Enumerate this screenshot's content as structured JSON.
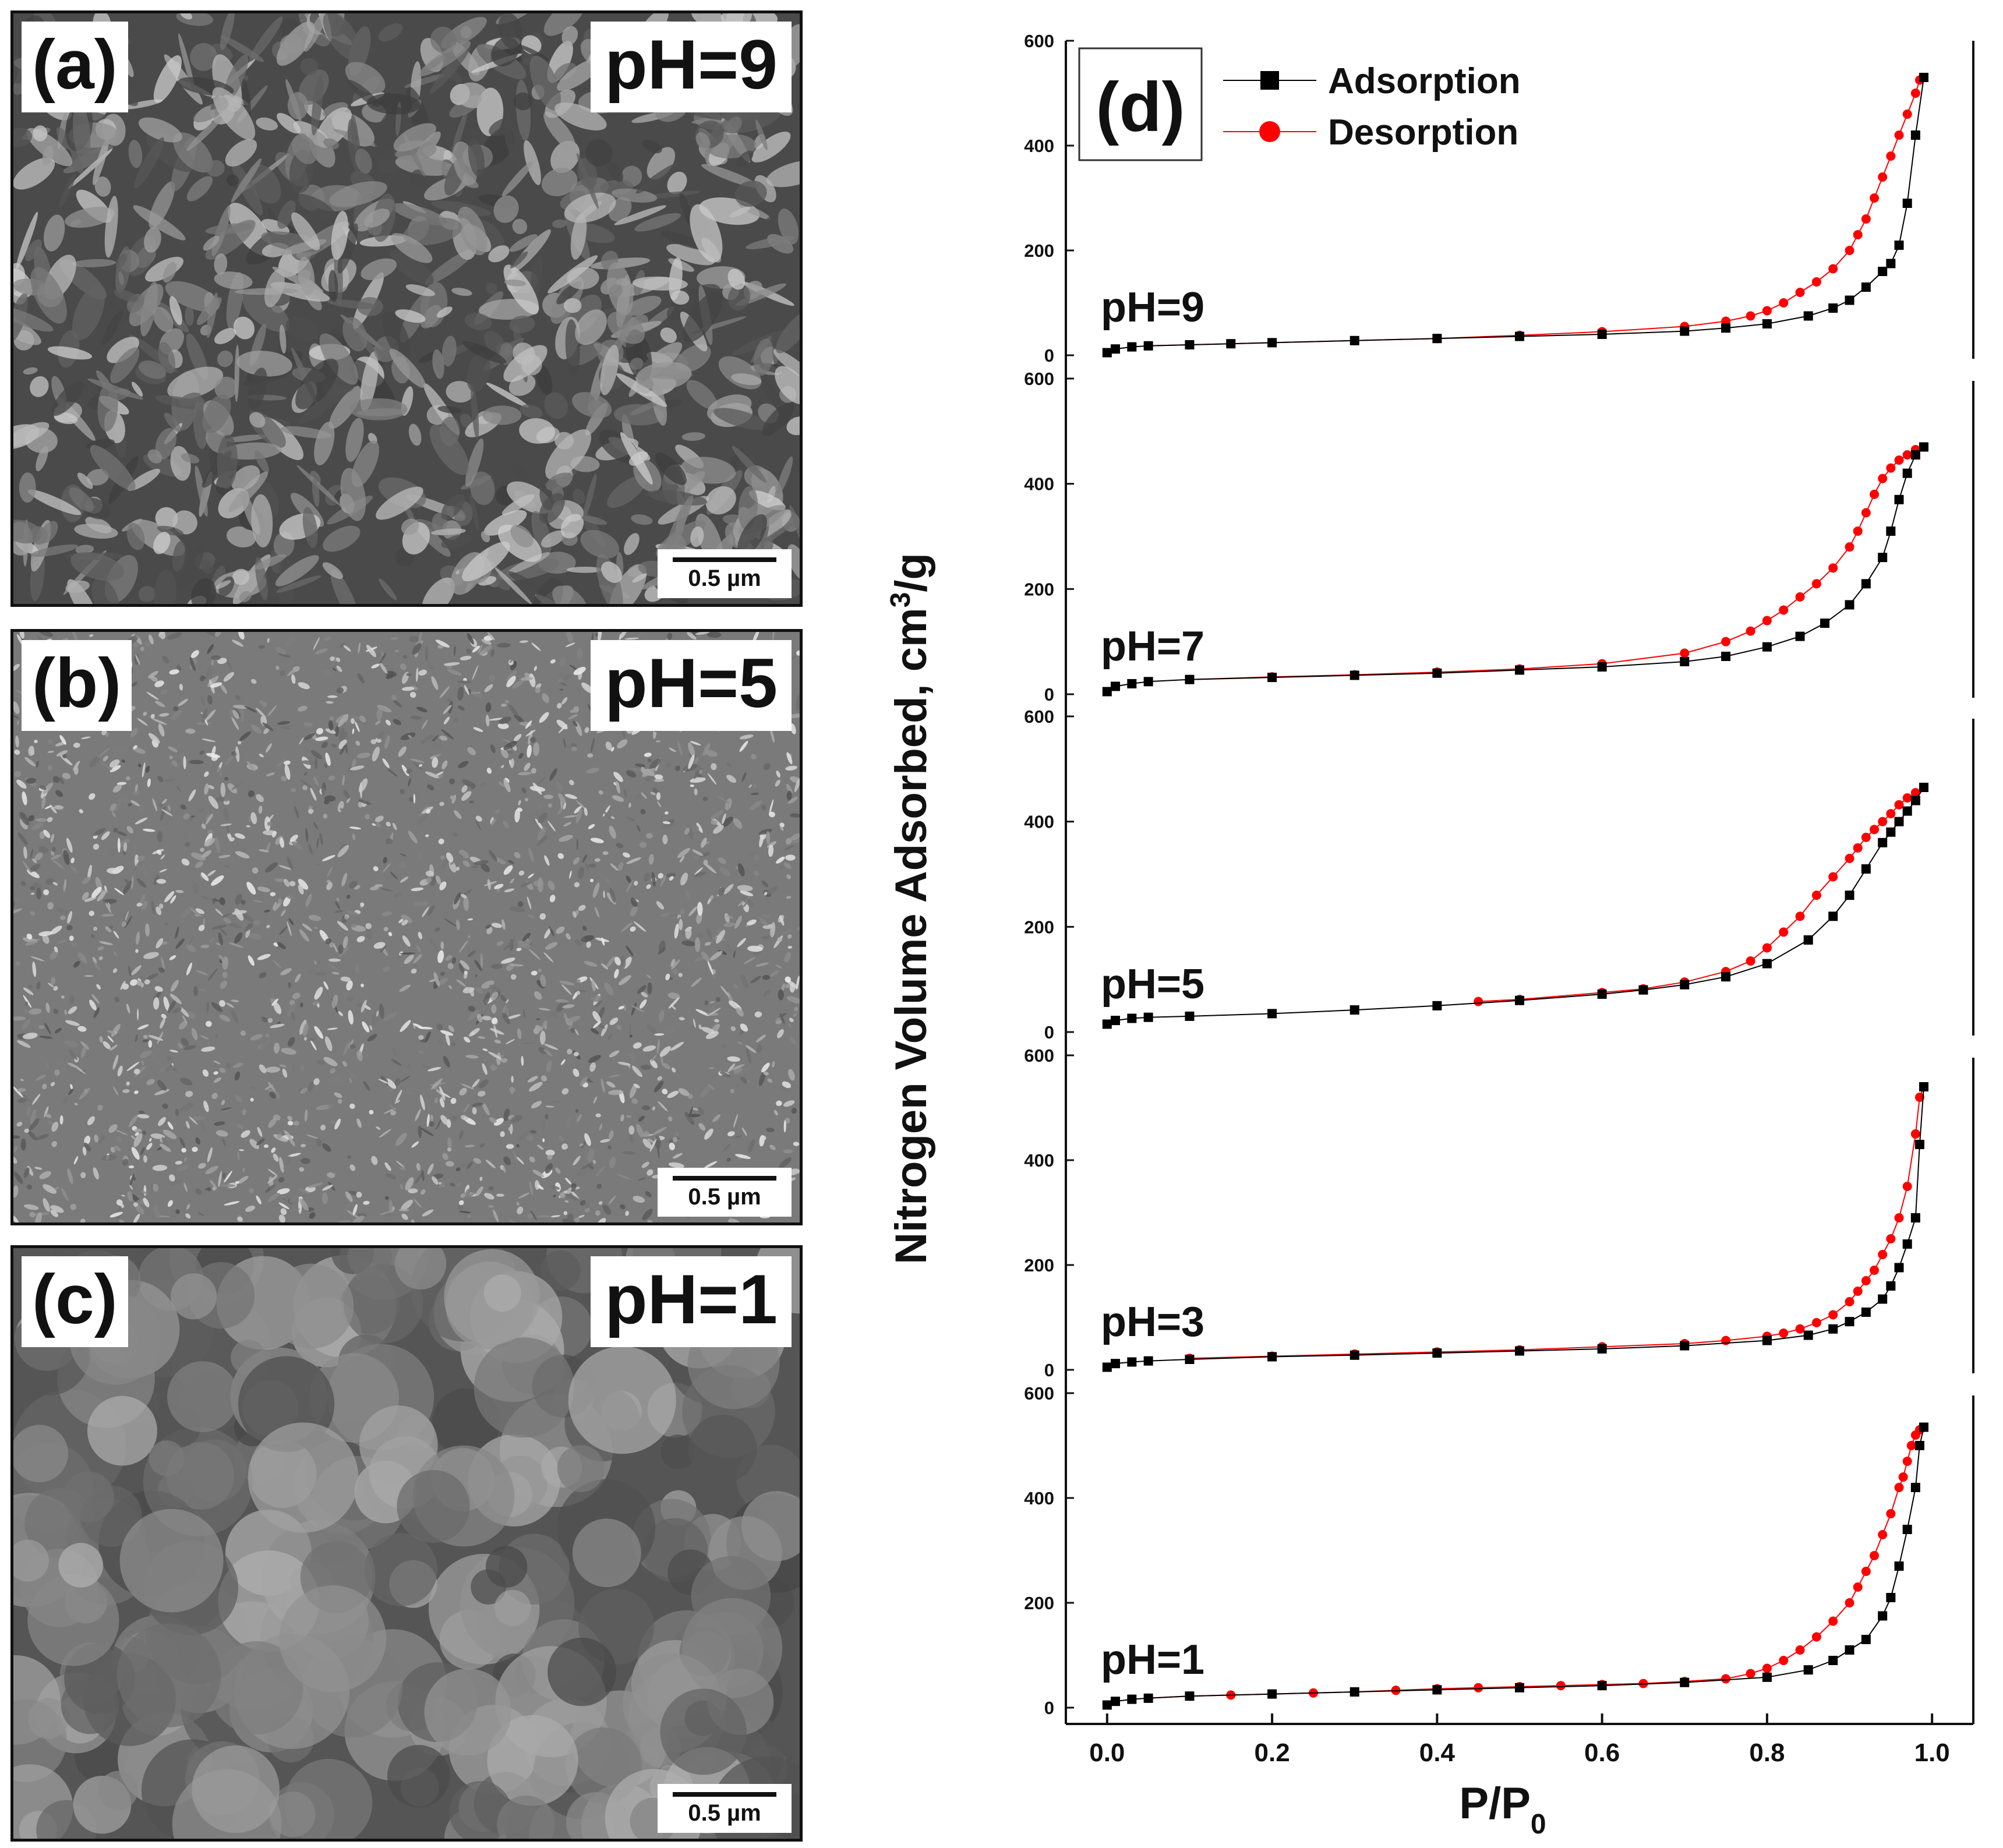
{
  "sem_panels": [
    {
      "letter": "(a)",
      "ph": "pH=9",
      "scale": "0.5 µm",
      "texture": "flakes"
    },
    {
      "letter": "(b)",
      "ph": "pH=5",
      "scale": "0.5 µm",
      "texture": "fine"
    },
    {
      "letter": "(c)",
      "ph": "pH=1",
      "scale": "0.5 µm",
      "texture": "smooth"
    }
  ],
  "chart_data": {
    "type": "line",
    "panel_label": "(d)",
    "xlabel": "P/P",
    "xlabel_sub": "0",
    "ylabel": "Nitrogen Volume Adsorbed, cm",
    "ylabel_sup": "3",
    "ylabel_tail": "/g",
    "xlim": [
      -0.05,
      1.05
    ],
    "ylim": [
      0,
      600
    ],
    "x_ticks": [
      "0.0",
      "0.2",
      "0.4",
      "0.6",
      "0.8",
      "1.0"
    ],
    "y_ticks": [
      "0",
      "200",
      "400",
      "600"
    ],
    "legend": {
      "placement": "top-left",
      "entries": [
        {
          "name": "Adsorption",
          "marker": "square",
          "color": "#000000"
        },
        {
          "name": "Desorption",
          "marker": "circle",
          "color": "#ff0000"
        }
      ]
    },
    "colors": {
      "adsorption": "#000000",
      "desorption": "#ff0000"
    },
    "subplots": [
      {
        "label": "pH=9",
        "adsorption": {
          "x": [
            0.0,
            0.01,
            0.03,
            0.05,
            0.1,
            0.15,
            0.2,
            0.3,
            0.4,
            0.5,
            0.6,
            0.7,
            0.75,
            0.8,
            0.85,
            0.88,
            0.9,
            0.92,
            0.94,
            0.95,
            0.96,
            0.97,
            0.98,
            0.99
          ],
          "y": [
            5,
            12,
            16,
            18,
            20,
            22,
            24,
            28,
            32,
            36,
            40,
            46,
            52,
            60,
            75,
            90,
            105,
            130,
            160,
            175,
            210,
            290,
            420,
            530
          ]
        },
        "desorption": {
          "x": [
            0.99,
            0.985,
            0.98,
            0.97,
            0.96,
            0.95,
            0.94,
            0.93,
            0.92,
            0.91,
            0.9,
            0.88,
            0.86,
            0.84,
            0.82,
            0.8,
            0.78,
            0.75,
            0.7,
            0.6,
            0.5,
            0.4,
            0.3,
            0.2,
            0.1,
            0.05
          ],
          "y": [
            530,
            525,
            500,
            460,
            420,
            380,
            340,
            300,
            260,
            230,
            200,
            165,
            140,
            120,
            100,
            85,
            75,
            65,
            55,
            45,
            38,
            32,
            28,
            24,
            20,
            18
          ]
        }
      },
      {
        "label": "pH=7",
        "adsorption": {
          "x": [
            0.0,
            0.01,
            0.03,
            0.05,
            0.1,
            0.2,
            0.3,
            0.4,
            0.5,
            0.6,
            0.7,
            0.75,
            0.8,
            0.84,
            0.87,
            0.9,
            0.92,
            0.94,
            0.95,
            0.96,
            0.97,
            0.98,
            0.99
          ],
          "y": [
            5,
            15,
            20,
            24,
            28,
            32,
            36,
            40,
            46,
            52,
            62,
            72,
            90,
            110,
            135,
            170,
            210,
            260,
            310,
            370,
            420,
            455,
            470
          ]
        },
        "desorption": {
          "x": [
            0.99,
            0.98,
            0.97,
            0.96,
            0.95,
            0.94,
            0.93,
            0.92,
            0.91,
            0.9,
            0.88,
            0.86,
            0.84,
            0.82,
            0.8,
            0.78,
            0.75,
            0.7,
            0.6,
            0.5,
            0.4,
            0.3,
            0.2,
            0.1
          ],
          "y": [
            470,
            465,
            455,
            445,
            430,
            410,
            380,
            345,
            310,
            280,
            240,
            210,
            185,
            160,
            140,
            120,
            100,
            78,
            58,
            48,
            42,
            37,
            33,
            28
          ]
        }
      },
      {
        "label": "pH=5",
        "adsorption": {
          "x": [
            0.0,
            0.01,
            0.03,
            0.05,
            0.1,
            0.2,
            0.3,
            0.4,
            0.5,
            0.6,
            0.65,
            0.7,
            0.75,
            0.8,
            0.85,
            0.88,
            0.9,
            0.92,
            0.94,
            0.95,
            0.96,
            0.97,
            0.98,
            0.99
          ],
          "y": [
            15,
            22,
            26,
            28,
            30,
            35,
            42,
            50,
            60,
            72,
            80,
            90,
            105,
            130,
            175,
            220,
            260,
            310,
            360,
            380,
            400,
            420,
            440,
            465
          ]
        },
        "desorption": {
          "x": [
            0.99,
            0.98,
            0.97,
            0.96,
            0.95,
            0.94,
            0.93,
            0.92,
            0.91,
            0.9,
            0.88,
            0.86,
            0.84,
            0.82,
            0.8,
            0.78,
            0.75,
            0.7,
            0.65,
            0.6,
            0.5,
            0.45
          ],
          "y": [
            465,
            455,
            445,
            432,
            415,
            400,
            385,
            370,
            350,
            330,
            295,
            260,
            220,
            190,
            160,
            135,
            115,
            95,
            82,
            75,
            62,
            58
          ]
        }
      },
      {
        "label": "pH=3",
        "adsorption": {
          "x": [
            0.0,
            0.01,
            0.03,
            0.05,
            0.1,
            0.2,
            0.3,
            0.4,
            0.5,
            0.6,
            0.7,
            0.8,
            0.85,
            0.88,
            0.9,
            0.92,
            0.94,
            0.95,
            0.96,
            0.97,
            0.98,
            0.985,
            0.99
          ],
          "y": [
            5,
            12,
            15,
            17,
            20,
            25,
            28,
            32,
            36,
            40,
            46,
            56,
            66,
            78,
            92,
            110,
            135,
            160,
            195,
            240,
            290,
            430,
            540
          ]
        },
        "desorption": {
          "x": [
            0.99,
            0.985,
            0.98,
            0.97,
            0.96,
            0.95,
            0.94,
            0.93,
            0.92,
            0.91,
            0.9,
            0.88,
            0.86,
            0.84,
            0.82,
            0.8,
            0.75,
            0.7,
            0.6,
            0.5,
            0.4,
            0.3,
            0.2,
            0.1
          ],
          "y": [
            540,
            520,
            450,
            350,
            290,
            250,
            220,
            190,
            170,
            150,
            130,
            105,
            90,
            78,
            70,
            64,
            56,
            50,
            44,
            38,
            34,
            30,
            26,
            22
          ]
        }
      },
      {
        "label": "pH=1",
        "adsorption": {
          "x": [
            0.0,
            0.01,
            0.03,
            0.05,
            0.1,
            0.2,
            0.3,
            0.4,
            0.5,
            0.6,
            0.7,
            0.8,
            0.85,
            0.88,
            0.9,
            0.92,
            0.94,
            0.95,
            0.96,
            0.97,
            0.98,
            0.985,
            0.99
          ],
          "y": [
            5,
            12,
            16,
            18,
            22,
            26,
            30,
            34,
            38,
            42,
            48,
            58,
            72,
            90,
            110,
            130,
            175,
            210,
            270,
            340,
            420,
            500,
            535
          ]
        },
        "desorption": {
          "x": [
            0.99,
            0.985,
            0.98,
            0.975,
            0.97,
            0.965,
            0.96,
            0.95,
            0.94,
            0.93,
            0.92,
            0.91,
            0.9,
            0.88,
            0.86,
            0.84,
            0.82,
            0.8,
            0.78,
            0.75,
            0.7,
            0.65,
            0.6,
            0.55,
            0.5,
            0.45,
            0.4,
            0.35,
            0.3,
            0.25,
            0.2,
            0.15,
            0.1,
            0.05
          ],
          "y": [
            535,
            530,
            520,
            500,
            470,
            440,
            420,
            370,
            330,
            290,
            260,
            230,
            200,
            165,
            135,
            110,
            90,
            75,
            65,
            55,
            50,
            46,
            44,
            42,
            40,
            38,
            36,
            33,
            30,
            28,
            26,
            24,
            22,
            18
          ]
        }
      }
    ]
  }
}
